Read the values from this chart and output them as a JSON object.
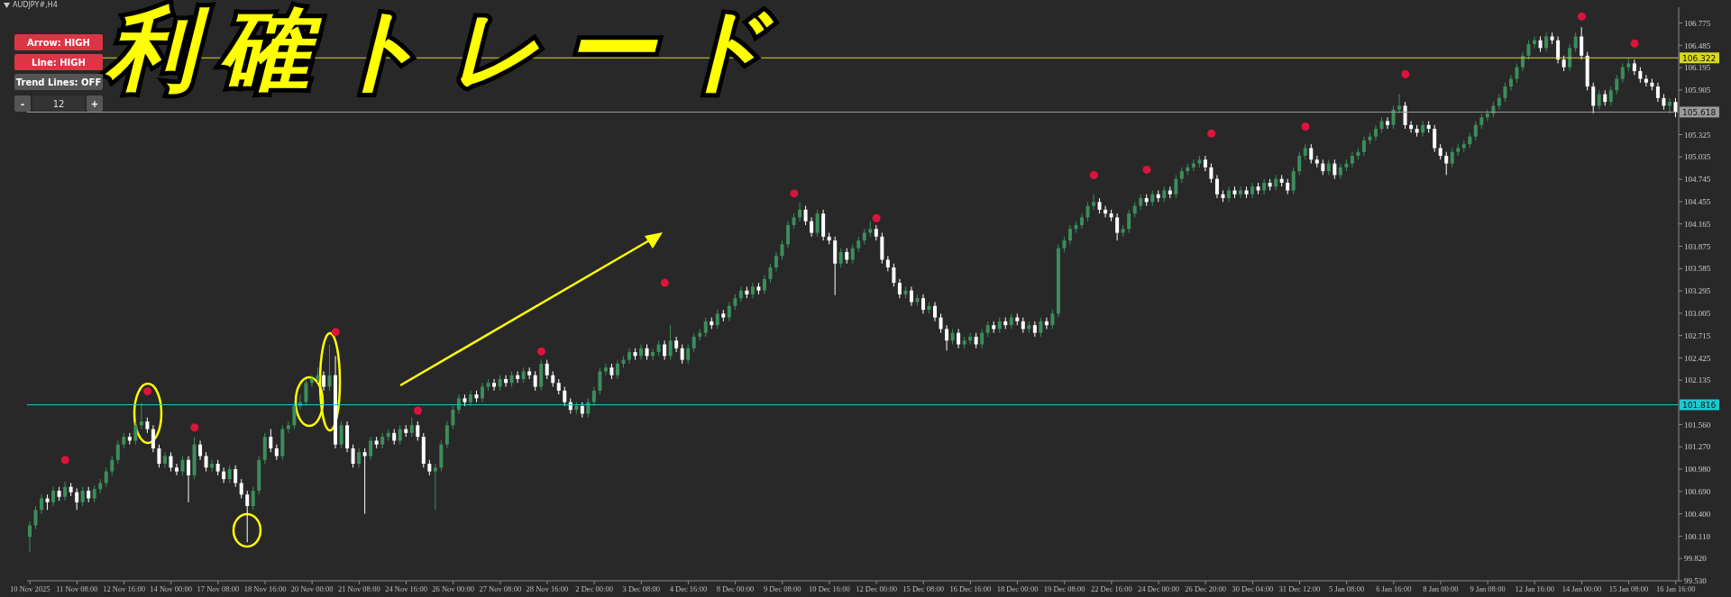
{
  "chart_data": {
    "type": "candlestick",
    "title": "利確トレード",
    "subtitle": "AUDJPY#,H4",
    "annotations": [
      "Arrow: HIGH",
      "Line: HIGH",
      "Trend Lines: OFF",
      "-",
      "12",
      "+"
    ],
    "categories": [
      "10 Nov 2025",
      null,
      null,
      null,
      null,
      null,
      null,
      null,
      "11 Nov 08:00",
      null,
      null,
      null,
      null,
      null,
      null,
      null,
      "12 Nov 16:00",
      null,
      null,
      null,
      null,
      null,
      null,
      null,
      "14 Nov 00:00",
      null,
      null,
      null,
      null,
      null,
      null,
      null,
      "17 Nov 08:00",
      null,
      null,
      null,
      null,
      null,
      null,
      null,
      "18 Nov 16:00",
      null,
      null,
      null,
      null,
      null,
      null,
      null,
      "20 Nov 00:00",
      null,
      null,
      null,
      null,
      null,
      null,
      null,
      "21 Nov 08:00",
      null,
      null,
      null,
      null,
      null,
      null,
      null,
      "24 Nov 16:00",
      null,
      null,
      null,
      null,
      null,
      null,
      null,
      "26 Nov 00:00",
      null,
      null,
      null,
      null,
      null,
      null,
      null,
      "27 Nov 08:00",
      null,
      null,
      null,
      null,
      null,
      null,
      null,
      "28 Nov 16:00",
      null,
      null,
      null,
      null,
      null,
      null,
      null,
      "2 Dec 00:00",
      null,
      null,
      null,
      null,
      null,
      null,
      null,
      "3 Dec 08:00",
      null,
      null,
      null,
      null,
      null,
      null,
      null,
      "4 Dec 16:00",
      null,
      null,
      null,
      null,
      null,
      null,
      null,
      "8 Dec 00:00",
      null,
      null,
      null,
      null,
      null,
      null,
      null,
      "9 Dec 08:00",
      null,
      null,
      null,
      null,
      null,
      null,
      null,
      "10 Dec 16:00",
      null,
      null,
      null,
      null,
      null,
      null,
      null,
      "12 Dec 00:00",
      null,
      null,
      null,
      null,
      null,
      null,
      null,
      "15 Dec 08:00",
      null,
      null,
      null,
      null,
      null,
      null,
      null,
      "16 Dec 16:00",
      null,
      null,
      null,
      null,
      null,
      null,
      null,
      "18 Dec 00:00",
      null,
      null,
      null,
      null,
      null,
      null,
      null,
      "19 Dec 08:00",
      null,
      null,
      null,
      null,
      null,
      null,
      null,
      "22 Dec 16:00",
      null,
      null,
      null,
      null,
      null,
      null,
      null,
      "24 Dec 00:00",
      null,
      null,
      null,
      null,
      null,
      null,
      null,
      "26 Dec 20:00",
      null,
      null,
      null,
      null,
      null,
      null,
      null,
      "30 Dec 04:00",
      null,
      null,
      null,
      null,
      null,
      null,
      null,
      "31 Dec 12:00",
      null,
      null,
      null,
      null,
      null,
      null,
      null,
      "5 Jan 08:00",
      null,
      null,
      null,
      null,
      null,
      null,
      null,
      "6 Jan 16:00",
      null,
      null,
      null,
      null,
      null,
      null,
      null,
      "8 Jan 00:00",
      null,
      null,
      null,
      null,
      null,
      null,
      null,
      "9 Jan 08:00",
      null,
      null,
      null,
      null,
      null,
      null,
      null,
      "12 Jan 16:00",
      null,
      null,
      null,
      null,
      null,
      null,
      null,
      "14 Jan 00:00",
      null,
      null,
      null,
      null,
      null,
      null,
      null,
      "15 Jan 08:00",
      null,
      null,
      null,
      null,
      null,
      null,
      null,
      "16 Jan 16:00"
    ],
    "ohlc": [
      [
        100.1,
        100.3,
        99.9,
        100.25
      ],
      [
        100.25,
        100.5,
        100.2,
        100.45
      ],
      [
        100.45,
        100.65,
        100.4,
        100.6
      ],
      [
        100.6,
        100.65,
        100.45,
        100.55
      ],
      [
        100.55,
        100.75,
        100.5,
        100.7
      ],
      [
        100.7,
        100.75,
        100.57,
        100.62
      ],
      [
        100.62,
        100.82,
        100.57,
        100.75
      ],
      [
        100.75,
        100.8,
        100.63,
        100.68
      ],
      [
        100.68,
        100.73,
        100.45,
        100.55
      ],
      [
        100.55,
        100.75,
        100.5,
        100.7
      ],
      [
        100.7,
        100.75,
        100.55,
        100.6
      ],
      [
        100.6,
        100.77,
        100.55,
        100.72
      ],
      [
        100.72,
        100.85,
        100.67,
        100.8
      ],
      [
        100.8,
        101.0,
        100.75,
        100.95
      ],
      [
        100.95,
        101.15,
        100.9,
        101.1
      ],
      [
        101.1,
        101.35,
        101.05,
        101.3
      ],
      [
        101.3,
        101.45,
        101.25,
        101.4
      ],
      [
        101.4,
        101.45,
        101.3,
        101.35
      ],
      [
        101.35,
        101.6,
        101.3,
        101.55
      ],
      [
        101.55,
        101.84,
        101.5,
        101.6
      ],
      [
        101.6,
        101.65,
        101.45,
        101.5
      ],
      [
        101.5,
        101.55,
        101.2,
        101.25
      ],
      [
        101.25,
        101.3,
        101.0,
        101.05
      ],
      [
        101.05,
        101.2,
        101.0,
        101.15
      ],
      [
        101.15,
        101.2,
        100.95,
        101.0
      ],
      [
        101.0,
        101.05,
        100.9,
        100.95
      ],
      [
        100.95,
        101.15,
        100.9,
        101.1
      ],
      [
        101.1,
        101.15,
        100.55,
        100.9
      ],
      [
        100.9,
        101.4,
        100.85,
        101.3
      ],
      [
        101.3,
        101.35,
        101.1,
        101.15
      ],
      [
        101.15,
        101.2,
        100.95,
        101.0
      ],
      [
        101.0,
        101.1,
        100.95,
        101.05
      ],
      [
        101.05,
        101.1,
        100.9,
        100.95
      ],
      [
        100.95,
        101.0,
        100.8,
        100.85
      ],
      [
        100.85,
        101.03,
        100.8,
        100.98
      ],
      [
        100.98,
        101.03,
        100.75,
        100.8
      ],
      [
        100.8,
        100.85,
        100.6,
        100.65
      ],
      [
        100.65,
        100.7,
        100.03,
        100.5
      ],
      [
        100.5,
        100.75,
        100.45,
        100.7
      ],
      [
        100.7,
        101.15,
        100.65,
        101.1
      ],
      [
        101.1,
        101.45,
        101.05,
        101.4
      ],
      [
        101.4,
        101.5,
        101.2,
        101.25
      ],
      [
        101.25,
        101.3,
        101.1,
        101.15
      ],
      [
        101.15,
        101.55,
        101.1,
        101.5
      ],
      [
        101.5,
        101.6,
        101.45,
        101.55
      ],
      [
        101.55,
        101.85,
        101.5,
        101.8
      ],
      [
        101.8,
        101.95,
        101.75,
        101.85
      ],
      [
        101.85,
        102.15,
        101.8,
        102.1
      ],
      [
        102.1,
        102.2,
        102.05,
        102.15
      ],
      [
        102.15,
        102.3,
        102.1,
        102.2
      ],
      [
        102.2,
        102.25,
        102.0,
        102.05
      ],
      [
        102.05,
        102.6,
        102.0,
        102.2
      ],
      [
        102.2,
        102.45,
        101.25,
        101.3
      ],
      [
        101.3,
        101.6,
        101.25,
        101.55
      ],
      [
        101.55,
        101.6,
        101.2,
        101.25
      ],
      [
        101.25,
        101.3,
        101.0,
        101.05
      ],
      [
        101.05,
        101.25,
        101.0,
        101.2
      ],
      [
        101.2,
        101.25,
        100.4,
        101.15
      ],
      [
        101.15,
        101.4,
        101.1,
        101.35
      ],
      [
        101.35,
        101.4,
        101.25,
        101.3
      ],
      [
        101.3,
        101.45,
        101.25,
        101.4
      ],
      [
        101.4,
        101.5,
        101.35,
        101.45
      ],
      [
        101.45,
        101.5,
        101.3,
        101.35
      ],
      [
        101.35,
        101.55,
        101.3,
        101.5
      ],
      [
        101.5,
        101.55,
        101.4,
        101.45
      ],
      [
        101.45,
        101.65,
        101.4,
        101.55
      ],
      [
        101.55,
        101.6,
        101.35,
        101.4
      ],
      [
        101.4,
        101.45,
        101.0,
        101.05
      ],
      [
        101.05,
        101.1,
        100.9,
        100.95
      ],
      [
        100.95,
        101.05,
        100.45,
        101.0
      ],
      [
        101.0,
        101.35,
        100.95,
        101.3
      ],
      [
        101.3,
        101.6,
        101.25,
        101.55
      ],
      [
        101.55,
        101.8,
        101.5,
        101.75
      ],
      [
        101.75,
        101.95,
        101.7,
        101.9
      ],
      [
        101.9,
        101.95,
        101.8,
        101.85
      ],
      [
        101.85,
        102.0,
        101.8,
        101.95
      ],
      [
        101.95,
        102.0,
        101.85,
        101.9
      ],
      [
        101.9,
        102.1,
        101.85,
        102.05
      ],
      [
        102.05,
        102.15,
        102.0,
        102.1
      ],
      [
        102.1,
        102.15,
        102.0,
        102.05
      ],
      [
        102.05,
        102.2,
        102.0,
        102.15
      ],
      [
        102.15,
        102.2,
        102.05,
        102.1
      ],
      [
        102.1,
        102.25,
        102.05,
        102.2
      ],
      [
        102.2,
        102.25,
        102.1,
        102.15
      ],
      [
        102.15,
        102.3,
        102.1,
        102.25
      ],
      [
        102.25,
        102.3,
        102.15,
        102.2
      ],
      [
        102.2,
        102.25,
        102.0,
        102.05
      ],
      [
        102.05,
        102.4,
        102.0,
        102.35
      ],
      [
        102.35,
        102.4,
        102.15,
        102.2
      ],
      [
        102.2,
        102.25,
        102.05,
        102.1
      ],
      [
        102.1,
        102.15,
        101.95,
        102.0
      ],
      [
        102.0,
        102.05,
        101.8,
        101.85
      ],
      [
        101.85,
        101.9,
        101.7,
        101.75
      ],
      [
        101.75,
        101.85,
        101.7,
        101.8
      ],
      [
        101.8,
        101.85,
        101.65,
        101.7
      ],
      [
        101.7,
        101.9,
        101.65,
        101.85
      ],
      [
        101.85,
        102.05,
        101.8,
        102.0
      ],
      [
        102.0,
        102.3,
        101.95,
        102.25
      ],
      [
        102.25,
        102.35,
        102.2,
        102.3
      ],
      [
        102.3,
        102.35,
        102.15,
        102.2
      ],
      [
        102.2,
        102.4,
        102.15,
        102.35
      ],
      [
        102.35,
        102.45,
        102.3,
        102.4
      ],
      [
        102.4,
        102.55,
        102.35,
        102.5
      ],
      [
        102.5,
        102.55,
        102.4,
        102.45
      ],
      [
        102.45,
        102.6,
        102.4,
        102.55
      ],
      [
        102.55,
        102.6,
        102.4,
        102.45
      ],
      [
        102.45,
        102.55,
        102.4,
        102.5
      ],
      [
        102.5,
        102.65,
        102.45,
        102.6
      ],
      [
        102.6,
        102.65,
        102.4,
        102.45
      ],
      [
        102.45,
        102.85,
        102.4,
        102.65
      ],
      [
        102.65,
        102.7,
        102.5,
        102.55
      ],
      [
        102.55,
        102.6,
        102.35,
        102.4
      ],
      [
        102.4,
        102.6,
        102.35,
        102.55
      ],
      [
        102.55,
        102.75,
        102.5,
        102.7
      ],
      [
        102.7,
        102.8,
        102.65,
        102.75
      ],
      [
        102.75,
        102.95,
        102.7,
        102.9
      ],
      [
        102.9,
        102.95,
        102.8,
        102.85
      ],
      [
        102.85,
        103.05,
        102.8,
        103.0
      ],
      [
        103.0,
        103.05,
        102.9,
        102.95
      ],
      [
        102.95,
        103.15,
        102.9,
        103.1
      ],
      [
        103.1,
        103.25,
        103.05,
        103.2
      ],
      [
        103.2,
        103.35,
        103.15,
        103.3
      ],
      [
        103.3,
        103.35,
        103.2,
        103.25
      ],
      [
        103.25,
        103.4,
        103.2,
        103.35
      ],
      [
        103.35,
        103.4,
        103.25,
        103.3
      ],
      [
        103.3,
        103.5,
        103.25,
        103.45
      ],
      [
        103.45,
        103.65,
        103.4,
        103.6
      ],
      [
        103.6,
        103.8,
        103.55,
        103.75
      ],
      [
        103.75,
        103.95,
        103.7,
        103.9
      ],
      [
        103.9,
        104.2,
        103.85,
        104.15
      ],
      [
        104.15,
        104.3,
        104.1,
        104.25
      ],
      [
        104.25,
        104.45,
        104.2,
        104.35
      ],
      [
        104.35,
        104.4,
        104.15,
        104.2
      ],
      [
        104.2,
        104.25,
        104.0,
        104.05
      ],
      [
        104.05,
        104.35,
        104.0,
        104.3
      ],
      [
        104.3,
        104.35,
        103.95,
        104.0
      ],
      [
        104.0,
        104.05,
        103.9,
        103.95
      ],
      [
        103.95,
        104.0,
        103.24,
        103.65
      ],
      [
        103.65,
        103.85,
        103.6,
        103.8
      ],
      [
        103.8,
        103.85,
        103.65,
        103.7
      ],
      [
        103.7,
        103.9,
        103.65,
        103.85
      ],
      [
        103.85,
        104.0,
        103.8,
        103.95
      ],
      [
        103.95,
        104.1,
        103.9,
        104.05
      ],
      [
        104.05,
        104.2,
        104.0,
        104.1
      ],
      [
        104.1,
        104.15,
        103.95,
        104.0
      ],
      [
        104.0,
        104.05,
        103.65,
        103.7
      ],
      [
        103.7,
        103.75,
        103.55,
        103.6
      ],
      [
        103.6,
        103.65,
        103.35,
        103.4
      ],
      [
        103.4,
        103.45,
        103.2,
        103.25
      ],
      [
        103.25,
        103.35,
        103.2,
        103.3
      ],
      [
        103.3,
        103.35,
        103.1,
        103.15
      ],
      [
        103.15,
        103.25,
        103.1,
        103.2
      ],
      [
        103.2,
        103.25,
        103.0,
        103.05
      ],
      [
        103.05,
        103.15,
        103.0,
        103.1
      ],
      [
        103.1,
        103.15,
        102.9,
        102.95
      ],
      [
        102.95,
        103.0,
        102.75,
        102.8
      ],
      [
        102.8,
        102.85,
        102.52,
        102.65
      ],
      [
        102.65,
        102.8,
        102.6,
        102.75
      ],
      [
        102.75,
        102.8,
        102.55,
        102.6
      ],
      [
        102.6,
        102.7,
        102.55,
        102.65
      ],
      [
        102.65,
        102.75,
        102.6,
        102.7
      ],
      [
        102.7,
        102.75,
        102.55,
        102.6
      ],
      [
        102.6,
        102.8,
        102.55,
        102.75
      ],
      [
        102.75,
        102.9,
        102.7,
        102.85
      ],
      [
        102.85,
        102.9,
        102.75,
        102.8
      ],
      [
        102.8,
        102.95,
        102.75,
        102.9
      ],
      [
        102.9,
        102.95,
        102.8,
        102.85
      ],
      [
        102.85,
        103.0,
        102.8,
        102.95
      ],
      [
        102.95,
        103.0,
        102.85,
        102.9
      ],
      [
        102.9,
        102.95,
        102.75,
        102.8
      ],
      [
        102.8,
        102.9,
        102.75,
        102.85
      ],
      [
        102.85,
        102.9,
        102.7,
        102.75
      ],
      [
        102.75,
        102.95,
        102.7,
        102.9
      ],
      [
        102.9,
        102.95,
        102.8,
        102.85
      ],
      [
        102.85,
        103.05,
        102.8,
        103.0
      ],
      [
        103.0,
        103.9,
        102.95,
        103.85
      ],
      [
        103.85,
        104.0,
        103.8,
        103.95
      ],
      [
        103.95,
        104.15,
        103.9,
        104.1
      ],
      [
        104.1,
        104.2,
        104.05,
        104.15
      ],
      [
        104.15,
        104.3,
        104.1,
        104.25
      ],
      [
        104.25,
        104.45,
        104.2,
        104.4
      ],
      [
        104.4,
        104.55,
        104.35,
        104.45
      ],
      [
        104.45,
        104.5,
        104.3,
        104.35
      ],
      [
        104.35,
        104.4,
        104.25,
        104.3
      ],
      [
        104.3,
        104.35,
        104.2,
        104.25
      ],
      [
        104.25,
        104.3,
        103.95,
        104.05
      ],
      [
        104.05,
        104.15,
        104.0,
        104.1
      ],
      [
        104.1,
        104.35,
        104.05,
        104.3
      ],
      [
        104.3,
        104.45,
        104.25,
        104.4
      ],
      [
        104.4,
        104.55,
        104.35,
        104.5
      ],
      [
        104.5,
        104.55,
        104.4,
        104.45
      ],
      [
        104.45,
        104.6,
        104.4,
        104.55
      ],
      [
        104.55,
        104.6,
        104.45,
        104.5
      ],
      [
        104.5,
        104.65,
        104.45,
        104.6
      ],
      [
        104.6,
        104.65,
        104.5,
        104.55
      ],
      [
        104.55,
        104.8,
        104.5,
        104.75
      ],
      [
        104.75,
        104.9,
        104.7,
        104.85
      ],
      [
        104.85,
        104.95,
        104.8,
        104.9
      ],
      [
        104.9,
        105.0,
        104.85,
        104.95
      ],
      [
        104.95,
        105.05,
        104.9,
        105.0
      ],
      [
        105.0,
        105.05,
        104.85,
        104.9
      ],
      [
        104.9,
        104.95,
        104.7,
        104.75
      ],
      [
        104.75,
        104.8,
        104.5,
        104.55
      ],
      [
        104.55,
        104.6,
        104.45,
        104.5
      ],
      [
        104.5,
        104.65,
        104.45,
        104.6
      ],
      [
        104.6,
        104.65,
        104.5,
        104.55
      ],
      [
        104.55,
        104.65,
        104.5,
        104.6
      ],
      [
        104.6,
        104.65,
        104.5,
        104.55
      ],
      [
        104.55,
        104.7,
        104.5,
        104.65
      ],
      [
        104.65,
        104.7,
        104.55,
        104.6
      ],
      [
        104.6,
        104.75,
        104.55,
        104.7
      ],
      [
        104.7,
        104.75,
        104.6,
        104.65
      ],
      [
        104.65,
        104.8,
        104.6,
        104.75
      ],
      [
        104.75,
        104.8,
        104.65,
        104.7
      ],
      [
        104.7,
        104.75,
        104.55,
        104.6
      ],
      [
        104.6,
        104.9,
        104.55,
        104.85
      ],
      [
        104.85,
        105.1,
        104.8,
        105.05
      ],
      [
        105.05,
        105.2,
        105.0,
        105.15
      ],
      [
        105.15,
        105.2,
        104.95,
        105.0
      ],
      [
        105.0,
        105.05,
        104.9,
        104.95
      ],
      [
        104.95,
        105.0,
        104.8,
        104.85
      ],
      [
        104.85,
        105.0,
        104.8,
        104.95
      ],
      [
        104.95,
        105.0,
        104.75,
        104.8
      ],
      [
        104.8,
        104.95,
        104.75,
        104.9
      ],
      [
        104.9,
        105.0,
        104.85,
        104.95
      ],
      [
        104.95,
        105.1,
        104.9,
        105.05
      ],
      [
        105.05,
        105.15,
        105.0,
        105.1
      ],
      [
        105.1,
        105.3,
        105.05,
        105.25
      ],
      [
        105.25,
        105.35,
        105.2,
        105.3
      ],
      [
        105.3,
        105.45,
        105.25,
        105.4
      ],
      [
        105.4,
        105.55,
        105.35,
        105.5
      ],
      [
        105.5,
        105.55,
        105.4,
        105.45
      ],
      [
        105.45,
        105.7,
        105.4,
        105.65
      ],
      [
        105.65,
        105.85,
        105.6,
        105.7
      ],
      [
        105.7,
        105.75,
        105.4,
        105.45
      ],
      [
        105.45,
        105.5,
        105.35,
        105.4
      ],
      [
        105.4,
        105.45,
        105.3,
        105.35
      ],
      [
        105.35,
        105.5,
        105.3,
        105.45
      ],
      [
        105.45,
        105.5,
        105.35,
        105.4
      ],
      [
        105.4,
        105.45,
        105.1,
        105.15
      ],
      [
        105.15,
        105.2,
        105.0,
        105.05
      ],
      [
        105.05,
        105.1,
        104.8,
        104.95
      ],
      [
        104.95,
        105.15,
        104.9,
        105.1
      ],
      [
        105.1,
        105.2,
        105.05,
        105.15
      ],
      [
        105.15,
        105.25,
        105.1,
        105.2
      ],
      [
        105.2,
        105.35,
        105.15,
        105.3
      ],
      [
        105.3,
        105.5,
        105.25,
        105.45
      ],
      [
        105.45,
        105.6,
        105.4,
        105.55
      ],
      [
        105.55,
        105.65,
        105.5,
        105.6
      ],
      [
        105.6,
        105.75,
        105.55,
        105.7
      ],
      [
        105.7,
        105.85,
        105.65,
        105.8
      ],
      [
        105.8,
        106.0,
        105.75,
        105.95
      ],
      [
        105.95,
        106.1,
        105.9,
        106.05
      ],
      [
        106.05,
        106.25,
        106.0,
        106.2
      ],
      [
        106.2,
        106.4,
        106.15,
        106.35
      ],
      [
        106.35,
        106.55,
        106.3,
        106.5
      ],
      [
        106.5,
        106.6,
        106.45,
        106.55
      ],
      [
        106.55,
        106.6,
        106.4,
        106.45
      ],
      [
        106.45,
        106.65,
        106.4,
        106.6
      ],
      [
        106.6,
        106.65,
        106.5,
        106.55
      ],
      [
        106.55,
        106.6,
        106.25,
        106.3
      ],
      [
        106.3,
        106.35,
        106.15,
        106.2
      ],
      [
        106.2,
        106.5,
        106.15,
        106.45
      ],
      [
        106.45,
        106.65,
        106.4,
        106.6
      ],
      [
        106.6,
        106.72,
        106.3,
        106.35
      ],
      [
        106.35,
        106.4,
        105.9,
        105.95
      ],
      [
        105.95,
        106.0,
        105.6,
        105.7
      ],
      [
        105.7,
        105.9,
        105.65,
        105.85
      ],
      [
        105.85,
        105.9,
        105.7,
        105.75
      ],
      [
        105.75,
        105.95,
        105.7,
        105.9
      ],
      [
        105.9,
        106.1,
        105.85,
        106.05
      ],
      [
        106.05,
        106.25,
        106.0,
        106.2
      ],
      [
        106.2,
        106.32,
        106.15,
        106.25
      ],
      [
        106.25,
        106.3,
        106.1,
        106.15
      ],
      [
        106.15,
        106.2,
        106.0,
        106.05
      ],
      [
        106.05,
        106.1,
        105.95,
        106.0
      ],
      [
        106.0,
        106.05,
        105.9,
        105.95
      ],
      [
        105.95,
        106.0,
        105.75,
        105.8
      ],
      [
        105.8,
        105.85,
        105.65,
        105.7
      ],
      [
        105.7,
        105.8,
        105.6,
        105.75
      ],
      [
        105.75,
        105.8,
        105.55,
        105.62
      ]
    ],
    "colors": [
      "#3c8d5c",
      "#3c8d5c",
      "#3c8d5c",
      "#ffffff",
      "#3c8d5c",
      "#ffffff",
      "#3c8d5c",
      "#ffffff",
      "#ffffff",
      "#3c8d5c",
      "#ffffff",
      "#3c8d5c",
      "#3c8d5c",
      "#3c8d5c",
      "#3c8d5c",
      "#3c8d5c",
      "#3c8d5c",
      "#ffffff",
      "#3c8d5c",
      "#3c8d5c",
      "#ffffff",
      "#ffffff",
      "#ffffff",
      "#3c8d5c",
      "#ffffff",
      "#ffffff",
      "#3c8d5c",
      "#ffffff",
      "#3c8d5c",
      "#ffffff",
      "#ffffff",
      "#3c8d5c",
      "#ffffff",
      "#ffffff",
      "#3c8d5c",
      "#ffffff",
      "#ffffff",
      "#ffffff",
      "#3c8d5c",
      "#3c8d5c",
      "#3c8d5c",
      "#ffffff",
      "#ffffff",
      "#3c8d5c",
      "#3c8d5c",
      "#3c8d5c",
      "#3c8d5c",
      "#3c8d5c",
      "#3c8d5c",
      "#3c8d5c",
      "#ffffff",
      "#3c8d5c",
      "#ffffff",
      "#3c8d5c",
      "#ffffff",
      "#ffffff",
      "#3c8d5c",
      "#ffffff",
      "#3c8d5c",
      "#ffffff",
      "#3c8d5c",
      "#3c8d5c",
      "#ffffff",
      "#3c8d5c",
      "#ffffff",
      "#3c8d5c",
      "#ffffff",
      "#ffffff",
      "#ffffff",
      "#3c8d5c",
      "#3c8d5c",
      "#3c8d5c",
      "#3c8d5c",
      "#3c8d5c",
      "#ffffff",
      "#3c8d5c",
      "#ffffff",
      "#3c8d5c",
      "#3c8d5c",
      "#ffffff",
      "#3c8d5c",
      "#ffffff",
      "#3c8d5c",
      "#ffffff",
      "#3c8d5c",
      "#ffffff",
      "#ffffff",
      "#3c8d5c",
      "#ffffff",
      "#ffffff",
      "#ffffff",
      "#ffffff",
      "#ffffff",
      "#3c8d5c",
      "#ffffff",
      "#3c8d5c",
      "#3c8d5c",
      "#3c8d5c",
      "#3c8d5c",
      "#ffffff",
      "#3c8d5c",
      "#3c8d5c",
      "#3c8d5c",
      "#ffffff",
      "#3c8d5c",
      "#ffffff",
      "#3c8d5c",
      "#3c8d5c",
      "#ffffff",
      "#3c8d5c",
      "#ffffff",
      "#ffffff",
      "#3c8d5c",
      "#3c8d5c",
      "#3c8d5c",
      "#3c8d5c",
      "#ffffff",
      "#3c8d5c",
      "#ffffff",
      "#3c8d5c",
      "#3c8d5c",
      "#3c8d5c",
      "#ffffff",
      "#3c8d5c",
      "#ffffff",
      "#3c8d5c",
      "#3c8d5c",
      "#3c8d5c",
      "#3c8d5c",
      "#3c8d5c",
      "#3c8d5c",
      "#3c8d5c",
      "#ffffff",
      "#ffffff",
      "#3c8d5c",
      "#ffffff",
      "#ffffff",
      "#ffffff",
      "#3c8d5c",
      "#ffffff",
      "#3c8d5c",
      "#3c8d5c",
      "#3c8d5c",
      "#3c8d5c",
      "#ffffff",
      "#ffffff",
      "#ffffff",
      "#ffffff",
      "#ffffff",
      "#3c8d5c",
      "#ffffff",
      "#3c8d5c",
      "#ffffff",
      "#3c8d5c",
      "#ffffff",
      "#ffffff",
      "#ffffff",
      "#3c8d5c",
      "#ffffff",
      "#3c8d5c",
      "#3c8d5c",
      "#ffffff",
      "#3c8d5c",
      "#3c8d5c",
      "#ffffff",
      "#3c8d5c",
      "#ffffff",
      "#3c8d5c",
      "#ffffff",
      "#ffffff",
      "#3c8d5c",
      "#ffffff",
      "#3c8d5c",
      "#ffffff",
      "#3c8d5c",
      "#3c8d5c",
      "#3c8d5c",
      "#3c8d5c",
      "#3c8d5c",
      "#3c8d5c",
      "#3c8d5c",
      "#3c8d5c",
      "#ffffff",
      "#ffffff",
      "#ffffff",
      "#ffffff",
      "#3c8d5c",
      "#3c8d5c",
      "#3c8d5c",
      "#3c8d5c",
      "#ffffff",
      "#3c8d5c",
      "#ffffff",
      "#3c8d5c",
      "#ffffff",
      "#3c8d5c",
      "#3c8d5c",
      "#3c8d5c",
      "#3c8d5c",
      "#3c8d5c",
      "#ffffff",
      "#ffffff",
      "#ffffff",
      "#ffffff",
      "#3c8d5c",
      "#ffffff",
      "#3c8d5c",
      "#ffffff",
      "#3c8d5c",
      "#ffffff",
      "#3c8d5c",
      "#ffffff",
      "#3c8d5c",
      "#ffffff",
      "#ffffff",
      "#3c8d5c",
      "#3c8d5c",
      "#3c8d5c",
      "#ffffff",
      "#ffffff",
      "#ffffff",
      "#3c8d5c",
      "#ffffff",
      "#3c8d5c",
      "#3c8d5c",
      "#3c8d5c",
      "#3c8d5c",
      "#3c8d5c",
      "#3c8d5c",
      "#3c8d5c",
      "#3c8d5c",
      "#ffffff",
      "#3c8d5c",
      "#3c8d5c",
      "#ffffff",
      "#ffffff",
      "#ffffff",
      "#3c8d5c",
      "#ffffff",
      "#ffffff",
      "#ffffff",
      "#ffffff",
      "#3c8d5c",
      "#3c8d5c",
      "#3c8d5c",
      "#3c8d5c",
      "#3c8d5c",
      "#3c8d5c",
      "#3c8d5c",
      "#3c8d5c",
      "#3c8d5c",
      "#3c8d5c",
      "#3c8d5c",
      "#3c8d5c",
      "#3c8d5c",
      "#3c8d5c",
      "#3c8d5c",
      "#ffffff",
      "#3c8d5c",
      "#ffffff",
      "#ffffff",
      "#ffffff",
      "#3c8d5c",
      "#3c8d5c",
      "#ffffff",
      "#ffffff",
      "#ffffff",
      "#3c8d5c",
      "#ffffff",
      "#3c8d5c",
      "#3c8d5c",
      "#3c8d5c",
      "#3c8d5c",
      "#ffffff",
      "#ffffff",
      "#ffffff",
      "#ffffff",
      "#ffffff",
      "#ffffff",
      "#3c8d5c",
      "#ffffff"
    ],
    "series": [
      {
        "type": "scatter",
        "color": "#dc143c",
        "values": [
          null,
          null,
          null,
          null,
          null,
          null,
          101.1,
          null,
          null,
          null,
          null,
          null,
          null,
          null,
          null,
          null,
          null,
          null,
          null,
          null,
          101.99,
          null,
          null,
          null,
          null,
          null,
          null,
          null,
          101.52,
          null,
          null,
          null,
          null,
          null,
          null,
          null,
          null,
          null,
          null,
          null,
          null,
          null,
          null,
          null,
          null,
          null,
          null,
          null,
          null,
          null,
          null,
          null,
          102.76,
          null,
          null,
          null,
          null,
          null,
          null,
          null,
          null,
          null,
          null,
          null,
          null,
          null,
          101.74,
          null,
          null,
          null,
          null,
          null,
          null,
          null,
          null,
          null,
          null,
          null,
          null,
          null,
          null,
          null,
          null,
          null,
          null,
          null,
          null,
          102.51,
          null,
          null,
          null,
          null,
          null,
          null,
          null,
          null,
          null,
          null,
          null,
          null,
          null,
          null,
          null,
          null,
          null,
          null,
          null,
          null,
          103.4,
          null,
          null,
          null,
          null,
          null,
          null,
          null,
          null,
          null,
          null,
          null,
          null,
          null,
          null,
          null,
          null,
          null,
          null,
          null,
          null,
          null,
          104.56,
          null,
          null,
          null,
          null,
          null,
          null,
          null,
          null,
          null,
          null,
          null,
          null,
          null,
          104.24,
          null,
          null,
          null,
          null,
          null,
          null,
          null,
          null,
          null,
          null,
          null,
          null,
          null,
          null,
          null,
          null,
          null,
          null,
          null,
          null,
          null,
          null,
          null,
          null,
          null,
          null,
          null,
          null,
          null,
          null,
          null,
          null,
          null,
          null,
          null,
          null,
          104.8,
          null,
          null,
          null,
          null,
          null,
          null,
          null,
          null,
          104.87,
          null,
          null,
          null,
          null,
          null,
          null,
          null,
          null,
          null,
          null,
          105.34,
          null,
          null,
          null,
          null,
          null,
          null,
          null,
          null,
          null,
          null,
          null,
          null,
          null,
          null,
          null,
          105.43,
          null,
          null,
          null,
          null,
          null,
          null,
          null,
          null,
          null,
          null,
          null,
          null,
          null,
          null,
          null,
          null,
          106.11,
          null,
          null,
          null,
          null,
          null,
          null,
          null,
          null,
          null,
          null,
          null,
          null,
          null,
          null,
          null,
          null,
          null,
          null,
          null,
          null,
          null,
          null,
          null,
          null,
          null,
          null,
          null,
          null,
          null,
          106.86,
          null,
          null,
          null,
          null,
          null,
          null,
          null,
          null,
          106.51,
          null,
          null,
          null,
          null,
          null,
          null,
          null
        ]
      }
    ],
    "marker": "circle",
    "ylim": [
      99.53,
      106.98
    ],
    "yticks": [
      {
        "value": 99.53,
        "label": "99.530"
      },
      {
        "value": 99.82,
        "label": "99.820"
      },
      {
        "value": 100.11,
        "label": "100.110"
      },
      {
        "value": 100.4,
        "label": "100.400"
      },
      {
        "value": 100.69,
        "label": "100.690"
      },
      {
        "value": 100.98,
        "label": "100.980"
      },
      {
        "value": 101.27,
        "label": "101.270"
      },
      {
        "value": 101.56,
        "label": "101.560"
      },
      102.135,
      102.425,
      102.715,
      {
        "value": 103.005,
        "label": "103.005"
      },
      103.295,
      103.585,
      103.875,
      104.165,
      104.455,
      104.745,
      105.035,
      105.325,
      105.905,
      106.195,
      106.485,
      106.775
    ],
    "ref_lines": [
      {
        "axis": "y",
        "value": 101.816,
        "label": "101.816",
        "color": "#1fc8d0"
      },
      {
        "axis": "y",
        "value": 105.618,
        "label": "105.618",
        "color": "#9a9a9a"
      },
      {
        "axis": "y",
        "value": 106.322,
        "label": "106.322",
        "color": "#d8d820"
      }
    ],
    "grid": false
  }
}
